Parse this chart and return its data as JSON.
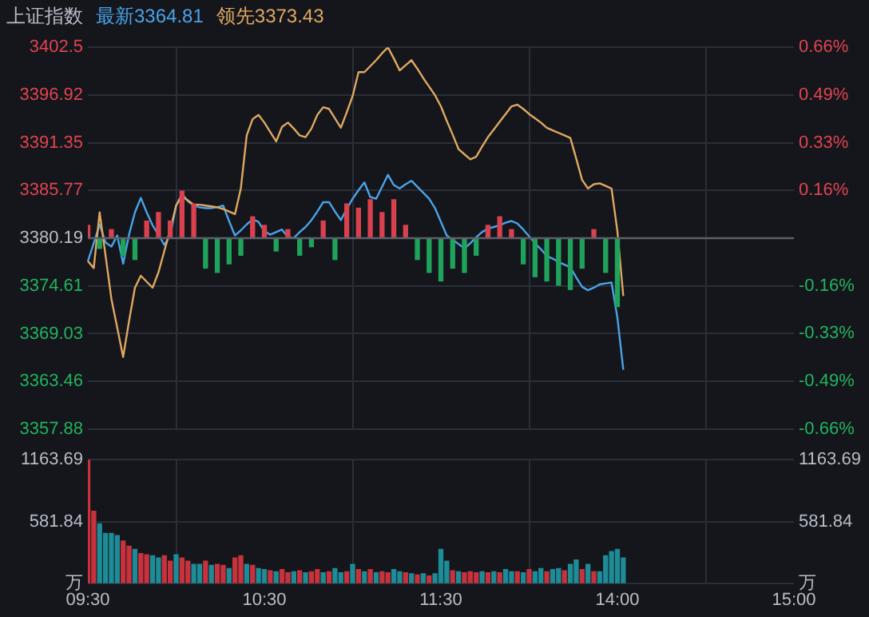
{
  "chart_data": [
    {
      "type": "line",
      "title": "上证指数",
      "legend": "top left",
      "grid": true,
      "tick_labels": "y",
      "categories": [
        null,
        null,
        null,
        null,
        null,
        null,
        null,
        null,
        null,
        null,
        null,
        null,
        null,
        null,
        null,
        null,
        null,
        null,
        null,
        null,
        null,
        null,
        null,
        null,
        null,
        null,
        null,
        null,
        null,
        null,
        null,
        null,
        null,
        null,
        null,
        null,
        null,
        null,
        null,
        null,
        null,
        null,
        null,
        null,
        null,
        null,
        null,
        null,
        null,
        null,
        null,
        null,
        null,
        null,
        null,
        null,
        null,
        null,
        null,
        null,
        null,
        null,
        null,
        null,
        null,
        null,
        null,
        null,
        null,
        null,
        null,
        null,
        null,
        null,
        null,
        null,
        null,
        null,
        null,
        null,
        null,
        null,
        null,
        null,
        null,
        null,
        null,
        null,
        null,
        null,
        null,
        null,
        null,
        null,
        null,
        null,
        null,
        null,
        null,
        null,
        null,
        null,
        null,
        null,
        null,
        null,
        null,
        null,
        null,
        null,
        null,
        null,
        null,
        null,
        null,
        null,
        null,
        null,
        null,
        null,
        null
      ],
      "ylim": [
        3357.88,
        3402.5
      ],
      "yticks": [
        3357.88,
        3363.46,
        3369.03,
        3374.61,
        3380.19,
        3385.77,
        3391.35,
        3396.92,
        3402.5
      ],
      "y2lim": [
        -0.66,
        0.66
      ],
      "y2ticks": [
        {
          "value": -0.66,
          "label": "-0.66%"
        },
        {
          "value": -0.495,
          "label": "-0.49%"
        },
        {
          "value": -0.33,
          "label": "-0.33%"
        },
        {
          "value": -0.165,
          "label": "-0.16%"
        },
        {
          "value": 0.165,
          "label": "0.16%"
        },
        {
          "value": 0.33,
          "label": "0.33%"
        },
        {
          "value": 0.495,
          "label": "0.49%"
        },
        {
          "value": 0.66,
          "label": "0.66%"
        }
      ],
      "ref_lines": [
        {
          "axis": "y",
          "value": 3380.19,
          "color": "#5c606a"
        }
      ],
      "series": [
        {
          "type": "bar",
          "base": [
            3380.19,
            null,
            3380.19,
            null,
            3380.19,
            null,
            3380.19,
            null,
            3380.19,
            null,
            3380.19,
            null,
            3380.19,
            null,
            3380.19,
            null,
            3380.19,
            null,
            3380.19,
            null,
            3380.19,
            null,
            3380.19,
            null,
            3380.19,
            null,
            3380.19,
            null,
            3380.19,
            null,
            3380.19,
            null,
            3380.19,
            null,
            3380.19,
            null,
            3380.19,
            null,
            3380.19,
            null,
            3380.19,
            null,
            3380.19,
            null,
            3380.19,
            null,
            3380.19,
            null,
            3380.19,
            null,
            3380.19,
            null,
            3380.19,
            null,
            3380.19,
            null,
            3380.19,
            null,
            3380.19,
            null,
            3380.19,
            null,
            3380.19,
            null,
            3380.19,
            null,
            3380.19,
            null,
            3380.19,
            null,
            3380.19,
            null,
            3380.19,
            null,
            3380.19,
            null,
            3380.19,
            null,
            3380.19,
            null,
            3380.19,
            null,
            3380.19,
            null,
            3380.19,
            null,
            3380.19,
            null,
            3380.19,
            null,
            3380.19,
            null,
            null,
            null,
            null,
            null,
            null,
            null,
            null,
            null,
            null,
            null,
            null,
            null,
            null,
            null,
            null,
            null,
            null,
            null,
            null,
            null,
            null,
            null,
            null,
            null,
            null,
            null,
            null,
            null,
            null
          ],
          "values": [
            1.5,
            null,
            -1.2,
            null,
            1.0,
            null,
            -2.0,
            null,
            -2.5,
            null,
            2.0,
            null,
            3.0,
            null,
            2.0,
            null,
            5.5,
            null,
            4.0,
            null,
            -3.5,
            null,
            -4.0,
            null,
            -3.0,
            null,
            -2.0,
            null,
            2.5,
            null,
            1.5,
            null,
            -1.5,
            null,
            1.0,
            null,
            -2.0,
            null,
            -1.0,
            null,
            2.0,
            null,
            -2.5,
            null,
            4.0,
            null,
            3.5,
            null,
            4.5,
            null,
            3.0,
            null,
            4.5,
            null,
            1.5,
            null,
            -2.5,
            null,
            -4.0,
            null,
            -5.0,
            null,
            -3.5,
            null,
            -4.0,
            null,
            -2.0,
            null,
            1.5,
            null,
            2.5,
            null,
            1.0,
            null,
            -3.0,
            null,
            -4.5,
            null,
            -5.0,
            null,
            -5.5,
            null,
            -6.0,
            null,
            -3.5,
            null,
            1.0,
            null,
            -4.0,
            null,
            -8.0,
            null,
            null,
            null,
            null,
            null,
            null,
            null,
            null,
            null,
            null,
            null,
            null,
            null,
            null,
            null,
            null,
            null,
            null,
            null,
            null,
            null,
            null,
            null,
            null,
            null,
            null,
            null,
            null,
            null,
            null
          ],
          "colors": [
            "#d9414e",
            null,
            "#1fa35a",
            null,
            "#d9414e",
            null,
            "#1fa35a",
            null,
            "#1fa35a",
            null,
            "#d9414e",
            null,
            "#d9414e",
            null,
            "#d9414e",
            null,
            "#d9414e",
            null,
            "#d9414e",
            null,
            "#1fa35a",
            null,
            "#1fa35a",
            null,
            "#1fa35a",
            null,
            "#1fa35a",
            null,
            "#d9414e",
            null,
            "#d9414e",
            null,
            "#1fa35a",
            null,
            "#d9414e",
            null,
            "#1fa35a",
            null,
            "#1fa35a",
            null,
            "#d9414e",
            null,
            "#1fa35a",
            null,
            "#d9414e",
            null,
            "#d9414e",
            null,
            "#d9414e",
            null,
            "#d9414e",
            null,
            "#d9414e",
            null,
            "#d9414e",
            null,
            "#1fa35a",
            null,
            "#1fa35a",
            null,
            "#1fa35a",
            null,
            "#1fa35a",
            null,
            "#1fa35a",
            null,
            "#1fa35a",
            null,
            "#d9414e",
            null,
            "#d9414e",
            null,
            "#d9414e",
            null,
            "#1fa35a",
            null,
            "#1fa35a",
            null,
            "#1fa35a",
            null,
            "#1fa35a",
            null,
            "#1fa35a",
            null,
            "#1fa35a",
            null,
            "#d9414e",
            null,
            "#1fa35a",
            null,
            "#1fa35a",
            null,
            null,
            null,
            null,
            null,
            null,
            null,
            null,
            null,
            null,
            null,
            null,
            null,
            null,
            null,
            null,
            null,
            null,
            null,
            null,
            null,
            null,
            null,
            null,
            null,
            null,
            null,
            null,
            null,
            null
          ]
        },
        {
          "type": "line",
          "name": "领先3373.43",
          "color": "#e0a860",
          "values": [
            3377.5,
            3376.7,
            3383.2,
            3378.2,
            3373.1,
            3369.7,
            3366.3,
            3370.5,
            3374.4,
            3375.8,
            3375.1,
            3374.4,
            3376.2,
            3378.7,
            3381.2,
            3384.0,
            3385.1,
            3384.6,
            3384.1,
            3384.1,
            3384.0,
            3383.9,
            3383.8,
            3383.6,
            3383.3,
            3383.0,
            3386.0,
            3392.2,
            3394.1,
            3394.6,
            3393.7,
            3392.6,
            3391.5,
            3393.2,
            3393.7,
            3393.0,
            3392.2,
            3392.0,
            3393.0,
            3394.6,
            3395.5,
            3395.3,
            3394.2,
            3393.1,
            3394.9,
            3396.8,
            3399.6,
            3399.6,
            3400.3,
            3401.0,
            3401.8,
            3402.5,
            3401.2,
            3399.8,
            3400.4,
            3401.0,
            3400.0,
            3398.9,
            3397.9,
            3396.9,
            3395.6,
            3393.9,
            3392.3,
            3390.6,
            3390.0,
            3389.4,
            3389.7,
            3390.9,
            3392.0,
            3392.9,
            3393.8,
            3394.7,
            3395.6,
            3395.8,
            3395.3,
            3394.7,
            3394.2,
            3393.7,
            3393.1,
            3392.8,
            3392.5,
            3392.2,
            3391.9,
            3389.5,
            3387.0,
            3386.0,
            3386.5,
            3386.6,
            3386.3,
            3386.0,
            3381.0,
            3373.43,
            null,
            null,
            null,
            null,
            null,
            null,
            null,
            null,
            null,
            null,
            null,
            null,
            null,
            null,
            null,
            null,
            null,
            null,
            null,
            null,
            null,
            null,
            null,
            null,
            null,
            null,
            null,
            null,
            null
          ]
        },
        {
          "type": "line",
          "name": "最新3364.81",
          "color": "#4aa3e8",
          "values": [
            3377.5,
            3379.6,
            3381.8,
            3379.7,
            3379.2,
            3380.5,
            3377.2,
            3380.6,
            3383.2,
            3384.9,
            3383.2,
            3381.7,
            3380.6,
            3379.4,
            3380.5,
            3384.0,
            3385.4,
            3384.5,
            3384.0,
            3383.8,
            3383.7,
            3383.7,
            3383.8,
            3384.0,
            3382.2,
            3380.5,
            3381.1,
            3381.8,
            3382.4,
            3382.1,
            3381.0,
            3380.6,
            3380.9,
            3381.2,
            3380.3,
            3380.2,
            3380.9,
            3381.5,
            3382.3,
            3383.3,
            3384.4,
            3384.4,
            3383.3,
            3382.3,
            3383.6,
            3384.8,
            3385.8,
            3386.7,
            3385.0,
            3384.8,
            3386.2,
            3387.6,
            3386.4,
            3386.0,
            3386.5,
            3386.9,
            3386.2,
            3385.5,
            3384.8,
            3383.7,
            3382.1,
            3380.5,
            3380.0,
            3379.5,
            3379.0,
            3379.6,
            3380.3,
            3380.9,
            3381.3,
            3381.5,
            3381.7,
            3382.0,
            3382.2,
            3381.9,
            3381.2,
            3380.4,
            3379.6,
            3378.9,
            3378.1,
            3377.8,
            3377.4,
            3377.1,
            3376.8,
            3375.6,
            3374.5,
            3374.1,
            3374.4,
            3374.8,
            3374.9,
            3375.0,
            3370.9,
            3364.81,
            null,
            null,
            null,
            null,
            null,
            null,
            null,
            null,
            null,
            null,
            null,
            null,
            null,
            null,
            null,
            null,
            null,
            null,
            null,
            null,
            null,
            null,
            null,
            null,
            null,
            null,
            null,
            null,
            null
          ]
        }
      ]
    },
    {
      "type": "bar",
      "grid": true,
      "categories": [
        "09:30",
        null,
        null,
        null,
        null,
        null,
        null,
        null,
        null,
        null,
        null,
        null,
        null,
        null,
        null,
        null,
        null,
        null,
        null,
        null,
        null,
        null,
        null,
        null,
        null,
        null,
        null,
        null,
        null,
        null,
        "10:30",
        null,
        null,
        null,
        null,
        null,
        null,
        null,
        null,
        null,
        null,
        null,
        null,
        null,
        null,
        null,
        null,
        null,
        null,
        null,
        null,
        null,
        null,
        null,
        null,
        null,
        null,
        null,
        null,
        null,
        "11:30",
        null,
        null,
        null,
        null,
        null,
        null,
        null,
        null,
        null,
        null,
        null,
        null,
        null,
        null,
        null,
        null,
        null,
        null,
        null,
        null,
        null,
        null,
        null,
        null,
        null,
        null,
        null,
        null,
        null,
        "14:00",
        null,
        null,
        null,
        null,
        null,
        null,
        null,
        null,
        null,
        null,
        null,
        null,
        null,
        null,
        null,
        null,
        null,
        null,
        null,
        null,
        null,
        null,
        null,
        null,
        null,
        null,
        null,
        null,
        null,
        "15:00"
      ],
      "ylim": [
        0,
        1163.69
      ],
      "yticks": [
        {
          "value": 0,
          "label": "万"
        },
        581.84,
        1163.69
      ],
      "y2lim": [
        0,
        1163.69
      ],
      "y2ticks": [
        {
          "value": 0,
          "label": "万"
        },
        581.84,
        1163.69
      ],
      "values": [
        1160,
        680,
        560,
        470,
        470,
        450,
        400,
        350,
        320,
        280,
        270,
        260,
        240,
        260,
        210,
        270,
        240,
        210,
        180,
        180,
        210,
        170,
        180,
        170,
        140,
        240,
        260,
        180,
        170,
        140,
        130,
        120,
        110,
        130,
        100,
        110,
        120,
        100,
        110,
        130,
        100,
        110,
        140,
        100,
        110,
        180,
        130,
        110,
        130,
        100,
        110,
        100,
        130,
        110,
        100,
        90,
        80,
        90,
        70,
        90,
        320,
        210,
        120,
        110,
        100,
        110,
        100,
        110,
        100,
        110,
        100,
        130,
        110,
        110,
        100,
        130,
        110,
        140,
        110,
        130,
        140,
        120,
        180,
        220,
        130,
        180,
        110,
        110,
        260,
        300,
        320,
        240,
        null,
        null,
        null,
        null,
        null,
        null,
        null,
        null,
        null,
        null,
        null,
        null,
        null,
        null,
        null,
        null,
        null,
        null,
        null,
        null,
        null,
        null,
        null,
        null,
        null,
        null,
        null,
        null,
        null
      ],
      "colors": [
        "#c8323c",
        "#c8323c",
        "#1e8c96",
        "#1e8c96",
        "#1e8c96",
        "#1e8c96",
        "#c8323c",
        "#c8323c",
        "#1e8c96",
        "#c8323c",
        "#c8323c",
        "#1e8c96",
        "#1e8c96",
        "#c8323c",
        "#c8323c",
        "#1e8c96",
        "#c8323c",
        "#c8323c",
        "#1e8c96",
        "#1e8c96",
        "#c8323c",
        "#1e8c96",
        "#c8323c",
        "#c8323c",
        "#1e8c96",
        "#c8323c",
        "#c8323c",
        "#1e8c96",
        "#c8323c",
        "#1e8c96",
        "#1e8c96",
        "#c8323c",
        "#1e8c96",
        "#c8323c",
        "#c8323c",
        "#1e8c96",
        "#c8323c",
        "#1e8c96",
        "#c8323c",
        "#c8323c",
        "#1e8c96",
        "#c8323c",
        "#1e8c96",
        "#1e8c96",
        "#c8323c",
        "#1e8c96",
        "#c8323c",
        "#1e8c96",
        "#c8323c",
        "#1e8c96",
        "#c8323c",
        "#c8323c",
        "#1e8c96",
        "#1e8c96",
        "#c8323c",
        "#1e8c96",
        "#c8323c",
        "#1e8c96",
        "#c8323c",
        "#1e8c96",
        "#1e8c96",
        "#1e8c96",
        "#c8323c",
        "#1e8c96",
        "#c8323c",
        "#c8323c",
        "#c8323c",
        "#1e8c96",
        "#c8323c",
        "#1e8c96",
        "#c8323c",
        "#1e8c96",
        "#1e8c96",
        "#c8323c",
        "#1e8c96",
        "#c8323c",
        "#1e8c96",
        "#1e8c96",
        "#c8323c",
        "#1e8c96",
        "#1e8c96",
        "#c8323c",
        "#1e8c96",
        "#1e8c96",
        "#c8323c",
        "#1e8c96",
        "#c8323c",
        "#1e8c96",
        "#1e8c96",
        "#1e8c96",
        "#1e8c96",
        "#1e8c96",
        null,
        null,
        null,
        null,
        null,
        null,
        null,
        null,
        null,
        null,
        null,
        null,
        null,
        null,
        null,
        null,
        null,
        null,
        null,
        null,
        null,
        null,
        null,
        null,
        null,
        null,
        null,
        null,
        null
      ]
    }
  ]
}
